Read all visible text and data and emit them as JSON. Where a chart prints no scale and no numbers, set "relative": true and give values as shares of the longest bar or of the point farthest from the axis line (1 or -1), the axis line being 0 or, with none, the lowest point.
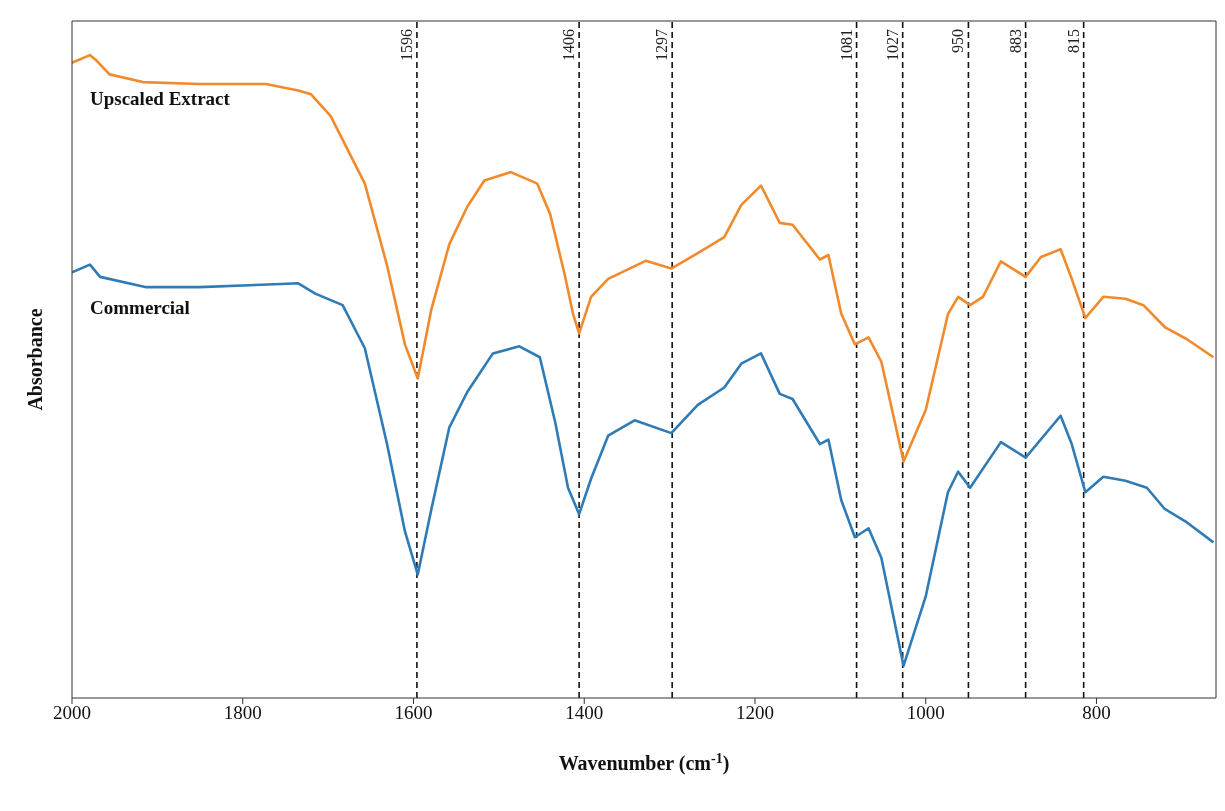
{
  "chart_data": {
    "type": "line",
    "xlabel": "Wavenumber (cm$^{-1}$)",
    "ylabel": "Absorbance",
    "relative": true,
    "xlim": [
      2000,
      660
    ],
    "xticks": [
      2000,
      1800,
      1600,
      1400,
      1200,
      1000,
      800
    ],
    "series": [
      {
        "name": "Upscaled Extract",
        "color": "#f08a2c",
        "x": [
          2000,
          1979,
          1971,
          1956,
          1917,
          1851,
          1773,
          1735,
          1720,
          1697,
          1657,
          1631,
          1610,
          1595,
          1579,
          1558,
          1537,
          1517,
          1486,
          1455,
          1440,
          1423,
          1413,
          1406,
          1392,
          1372,
          1328,
          1298,
          1267,
          1236,
          1216,
          1193,
          1171,
          1156,
          1124,
          1114,
          1099,
          1083,
          1067,
          1052,
          1026,
          1000,
          974,
          962,
          948,
          933,
          912,
          883,
          865,
          842,
          829,
          813,
          792,
          766,
          745,
          720,
          694,
          663
        ],
        "values": [
          0.988,
          1.0,
          0.991,
          0.97,
          0.958,
          0.955,
          0.955,
          0.945,
          0.939,
          0.905,
          0.8,
          0.673,
          0.55,
          0.497,
          0.605,
          0.706,
          0.764,
          0.805,
          0.818,
          0.8,
          0.753,
          0.659,
          0.597,
          0.567,
          0.624,
          0.652,
          0.68,
          0.668,
          0.692,
          0.717,
          0.767,
          0.797,
          0.739,
          0.736,
          0.682,
          0.689,
          0.598,
          0.55,
          0.561,
          0.523,
          0.368,
          0.448,
          0.597,
          0.624,
          0.611,
          0.624,
          0.679,
          0.655,
          0.686,
          0.698,
          0.652,
          0.591,
          0.624,
          0.621,
          0.611,
          0.577,
          0.558,
          0.53
        ]
      },
      {
        "name": "Commercial",
        "color": "#2f7bb6",
        "x": [
          2000,
          1979,
          1967,
          1913,
          1851,
          1755,
          1735,
          1715,
          1683,
          1657,
          1631,
          1610,
          1595,
          1579,
          1558,
          1537,
          1507,
          1476,
          1452,
          1434,
          1419,
          1406,
          1392,
          1372,
          1341,
          1298,
          1267,
          1236,
          1216,
          1193,
          1171,
          1156,
          1124,
          1114,
          1099,
          1083,
          1067,
          1052,
          1026,
          1000,
          974,
          962,
          948,
          912,
          883,
          842,
          829,
          813,
          792,
          766,
          741,
          720,
          694,
          663
        ],
        "values": [
          0.662,
          0.674,
          0.655,
          0.639,
          0.639,
          0.644,
          0.645,
          0.629,
          0.611,
          0.544,
          0.395,
          0.259,
          0.192,
          0.294,
          0.421,
          0.476,
          0.536,
          0.547,
          0.53,
          0.429,
          0.327,
          0.286,
          0.341,
          0.408,
          0.432,
          0.412,
          0.456,
          0.483,
          0.52,
          0.536,
          0.473,
          0.465,
          0.395,
          0.402,
          0.308,
          0.25,
          0.264,
          0.218,
          0.05,
          0.158,
          0.32,
          0.352,
          0.327,
          0.398,
          0.374,
          0.439,
          0.395,
          0.32,
          0.344,
          0.338,
          0.327,
          0.294,
          0.273,
          0.242
        ]
      }
    ],
    "ref_lines": [
      {
        "axis": "x",
        "value": 1596,
        "label": "1596",
        "color": "#111111",
        "line_style": "dashed"
      },
      {
        "axis": "x",
        "value": 1406,
        "label": "1406",
        "color": "#111111",
        "line_style": "dashed"
      },
      {
        "axis": "x",
        "value": 1297,
        "label": "1297",
        "color": "#111111",
        "line_style": "dashed"
      },
      {
        "axis": "x",
        "value": 1081,
        "label": "1081",
        "color": "#111111",
        "line_style": "dashed"
      },
      {
        "axis": "x",
        "value": 1027,
        "label": "1027",
        "color": "#111111",
        "line_style": "dashed"
      },
      {
        "axis": "x",
        "value": 950,
        "label": "950",
        "color": "#111111",
        "line_style": "dashed"
      },
      {
        "axis": "x",
        "value": 883,
        "label": "883",
        "color": "#111111",
        "line_style": "dashed"
      },
      {
        "axis": "x",
        "value": 815,
        "label": "815",
        "color": "#111111",
        "line_style": "dashed"
      }
    ]
  }
}
